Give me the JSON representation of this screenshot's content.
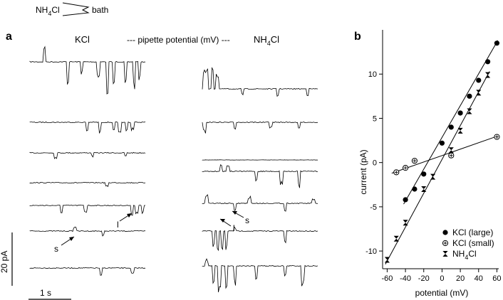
{
  "schematic": {
    "left_label": "NH",
    "left_sub": "4",
    "left_tail": "Cl",
    "right_label": "bath"
  },
  "panel_a": {
    "letter": "a",
    "left_condition": "KCl",
    "center_label": "--- pipette potential (mV) ---",
    "right_prefix": "NH",
    "right_sub": "4",
    "right_tail": "Cl",
    "scale_y": "20 pA",
    "scale_x": "1 s",
    "annotations": {
      "small": "s",
      "large": "l"
    },
    "left_traces": 7,
    "right_traces": 7
  },
  "panel_b": {
    "letter": "b"
  },
  "chart_data": {
    "type": "scatter",
    "xlabel": "potential (mV)",
    "ylabel": "current (pA)",
    "xlim": [
      -65,
      62
    ],
    "ylim": [
      -12,
      15
    ],
    "xticks": [
      -60,
      -40,
      -20,
      0,
      20,
      40,
      60
    ],
    "yticks": [
      -10,
      -5,
      0,
      5,
      10
    ],
    "grid": false,
    "legend_position": "bottom-right",
    "series": [
      {
        "name": "KCl (large)",
        "marker": "filled-circle",
        "points": [
          [
            -40,
            -4.2
          ],
          [
            -30,
            -3.0
          ],
          [
            -20,
            -1.3
          ],
          [
            0,
            2.2
          ],
          [
            10,
            4.0
          ],
          [
            20,
            5.6
          ],
          [
            30,
            7.5
          ],
          [
            40,
            9.3
          ],
          [
            50,
            11.4
          ],
          [
            60,
            13.5
          ]
        ],
        "fit": [
          [
            -42,
            -4.7
          ],
          [
            61,
            13.8
          ]
        ]
      },
      {
        "name": "KCl (small)",
        "marker": "circle-plus",
        "points": [
          [
            -50,
            -1.1
          ],
          [
            -40,
            -0.6
          ],
          [
            -30,
            0.2
          ],
          [
            10,
            0.8
          ],
          [
            60,
            2.9
          ]
        ],
        "fit": [
          [
            -55,
            -1.2
          ],
          [
            61,
            3.0
          ]
        ]
      },
      {
        "name": "NH4Cl",
        "name_prefix": "NH",
        "name_sub": "4",
        "name_tail": "Cl",
        "marker": "hourglass",
        "points": [
          [
            -60,
            -11.0
          ],
          [
            -50,
            -8.6
          ],
          [
            -40,
            -6.8
          ],
          [
            -20,
            -3.0
          ],
          [
            -10,
            -1.6
          ],
          [
            10,
            1.4
          ],
          [
            20,
            3.6
          ],
          [
            30,
            5.8
          ],
          [
            40,
            7.9
          ],
          [
            50,
            9.9
          ]
        ],
        "fit": [
          [
            -62,
            -11.5
          ],
          [
            52,
            10.3
          ]
        ]
      }
    ]
  }
}
